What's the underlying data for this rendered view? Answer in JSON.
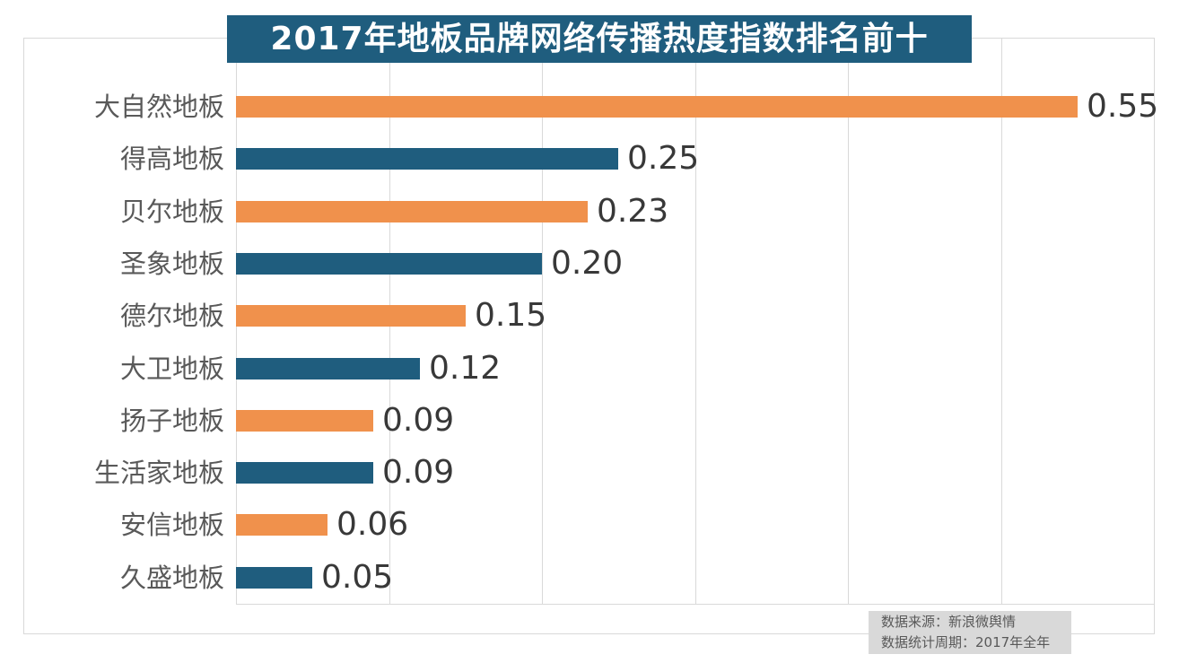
{
  "title": "2017年地板品牌网络传播热度指数排名前十",
  "footer": {
    "source": "数据来源：新浪微舆情",
    "period": "数据统计周期：2017年全年"
  },
  "colors": {
    "orange": "#f0914c",
    "blue": "#1f5d7e",
    "title_bg": "#1f5d7e",
    "grid": "#d9d9d9",
    "category_text": "#595959",
    "value_text": "#383838",
    "footer_bg": "#d9d9d9"
  },
  "chart_data": {
    "type": "bar",
    "orientation": "horizontal",
    "title": "2017年地板品牌网络传播热度指数排名前十",
    "categories": [
      "大自然地板",
      "得高地板",
      "贝尔地板",
      "圣象地板",
      "德尔地板",
      "大卫地板",
      "扬子地板",
      "生活家地板",
      "安信地板",
      "久盛地板"
    ],
    "values": [
      0.55,
      0.25,
      0.23,
      0.2,
      0.15,
      0.12,
      0.09,
      0.09,
      0.06,
      0.05
    ],
    "value_labels": [
      "0.55",
      "0.25",
      "0.23",
      "0.20",
      "0.15",
      "0.12",
      "0.09",
      "0.09",
      "0.06",
      "0.05"
    ],
    "xlim": [
      0,
      0.6
    ],
    "grid_interval": 0.1,
    "grid": true,
    "legend": false,
    "bar_colors_alternate": [
      "#f0914c",
      "#1f5d7e"
    ],
    "value_labels_position": "end-of-bar",
    "source_note": "数据来源：新浪微舆情",
    "period_note": "数据统计周期：2017年全年"
  }
}
